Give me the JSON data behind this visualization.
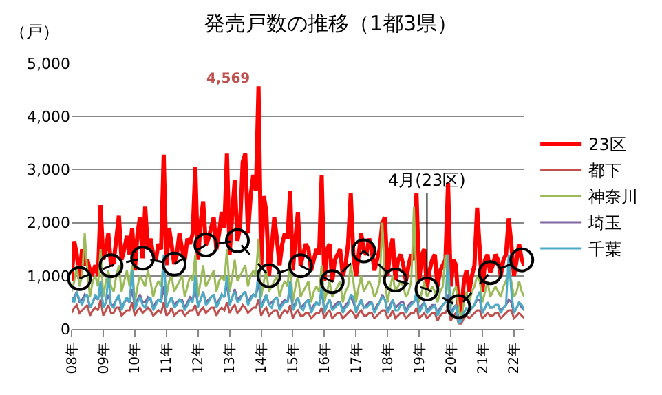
{
  "chart_data": {
    "type": "line",
    "title": "発売戸数の推移（1都3県）",
    "ylabel": "（戸）",
    "x": [
      "2008-01",
      "2008-02",
      "2008-03",
      "2008-04",
      "2008-05",
      "2008-06",
      "2008-07",
      "2008-08",
      "2008-09",
      "2008-10",
      "2008-11",
      "2008-12",
      "2009-01",
      "2009-02",
      "2009-03",
      "2009-04",
      "2009-05",
      "2009-06",
      "2009-07",
      "2009-08",
      "2009-09",
      "2009-10",
      "2009-11",
      "2009-12",
      "2010-01",
      "2010-02",
      "2010-03",
      "2010-04",
      "2010-05",
      "2010-06",
      "2010-07",
      "2010-08",
      "2010-09",
      "2010-10",
      "2010-11",
      "2010-12",
      "2011-01",
      "2011-02",
      "2011-03",
      "2011-04",
      "2011-05",
      "2011-06",
      "2011-07",
      "2011-08",
      "2011-09",
      "2011-10",
      "2011-11",
      "2011-12",
      "2012-01",
      "2012-02",
      "2012-03",
      "2012-04",
      "2012-05",
      "2012-06",
      "2012-07",
      "2012-08",
      "2012-09",
      "2012-10",
      "2012-11",
      "2012-12",
      "2013-01",
      "2013-02",
      "2013-03",
      "2013-04",
      "2013-05",
      "2013-06",
      "2013-07",
      "2013-08",
      "2013-09",
      "2013-10",
      "2013-11",
      "2013-12",
      "2014-01",
      "2014-02",
      "2014-03",
      "2014-04",
      "2014-05",
      "2014-06",
      "2014-07",
      "2014-08",
      "2014-09",
      "2014-10",
      "2014-11",
      "2014-12",
      "2015-01",
      "2015-02",
      "2015-03",
      "2015-04",
      "2015-05",
      "2015-06",
      "2015-07",
      "2015-08",
      "2015-09",
      "2015-10",
      "2015-11",
      "2015-12",
      "2016-01",
      "2016-02",
      "2016-03",
      "2016-04",
      "2016-05",
      "2016-06",
      "2016-07",
      "2016-08",
      "2016-09",
      "2016-10",
      "2016-11",
      "2016-12",
      "2017-01",
      "2017-02",
      "2017-03",
      "2017-04",
      "2017-05",
      "2017-06",
      "2017-07",
      "2017-08",
      "2017-09",
      "2017-10",
      "2017-11",
      "2017-12",
      "2018-01",
      "2018-02",
      "2018-03",
      "2018-04",
      "2018-05",
      "2018-06",
      "2018-07",
      "2018-08",
      "2018-09",
      "2018-10",
      "2018-11",
      "2018-12",
      "2019-01",
      "2019-02",
      "2019-03",
      "2019-04",
      "2019-05",
      "2019-06",
      "2019-07",
      "2019-08",
      "2019-09",
      "2019-10",
      "2019-11",
      "2019-12",
      "2020-01",
      "2020-02",
      "2020-03",
      "2020-04",
      "2020-05",
      "2020-06",
      "2020-07",
      "2020-08",
      "2020-09",
      "2020-10",
      "2020-11",
      "2020-12",
      "2021-01",
      "2021-02",
      "2021-03",
      "2021-04",
      "2021-05",
      "2021-06",
      "2021-07",
      "2021-08",
      "2021-09",
      "2021-10",
      "2021-11",
      "2021-12",
      "2022-01",
      "2022-02",
      "2022-03",
      "2022-04",
      "2022-05"
    ],
    "series": [
      {
        "name": "23区",
        "color": "#ff0000",
        "values": [
          900,
          1650,
          1400,
          950,
          1500,
          1200,
          1300,
          1100,
          1050,
          1200,
          1000,
          2330,
          1300,
          1500,
          1800,
          1190,
          1250,
          1700,
          2130,
          1300,
          1500,
          1750,
          1400,
          1900,
          1100,
          1800,
          2100,
          1330,
          2300,
          1500,
          1700,
          1400,
          1300,
          1600,
          1500,
          3280,
          1200,
          1900,
          1600,
          1220,
          1400,
          1800,
          1500,
          1300,
          1700,
          1600,
          1800,
          3050,
          1300,
          2000,
          2400,
          1580,
          1700,
          1900,
          2100,
          1500,
          1800,
          2200,
          1900,
          3300,
          1400,
          2200,
          2800,
          1660,
          1900,
          3140,
          3300,
          1800,
          2500,
          2900,
          2600,
          4569,
          1200,
          2500,
          2200,
          1000,
          1500,
          2100,
          1700,
          1200,
          1600,
          1800,
          1700,
          2600,
          1100,
          1700,
          2200,
          1190,
          1400,
          1600,
          1500,
          1100,
          1300,
          1500,
          1400,
          2890,
          900,
          1500,
          1600,
          890,
          1300,
          1400,
          1500,
          1000,
          1200,
          1600,
          2550,
          1400,
          1000,
          1400,
          1800,
          1470,
          1400,
          1700,
          1500,
          1100,
          1300,
          1500,
          2000,
          2100,
          1000,
          1500,
          1700,
          920,
          1300,
          1400,
          1200,
          900,
          1200,
          1400,
          1300,
          2550,
          900,
          1400,
          1500,
          750,
          1100,
          1300,
          1400,
          800,
          1100,
          1200,
          1300,
          2750,
          800,
          1300,
          1200,
          420,
          300,
          900,
          1100,
          700,
          1000,
          1200,
          2280,
          1500,
          700,
          1300,
          1400,
          1060,
          1200,
          1400,
          1300,
          1000,
          1300,
          1400,
          2080,
          1600,
          1000,
          1300,
          1600,
          1300,
          1200
        ],
        "value_labels": [
          null,
          null,
          null,
          null,
          null,
          null,
          null,
          null,
          null,
          null,
          null,
          null,
          null,
          null,
          null,
          null,
          null,
          null,
          null,
          null,
          null,
          null,
          null,
          null,
          null,
          null,
          null,
          null,
          null,
          null,
          null,
          null,
          null,
          null,
          null,
          null,
          null,
          null,
          null,
          null,
          null,
          null,
          null,
          null,
          null,
          null,
          null,
          null,
          null,
          null,
          null,
          null,
          null,
          null,
          null,
          null,
          null,
          null,
          null,
          null,
          null,
          null,
          null,
          null,
          null,
          null,
          null,
          null,
          null,
          null,
          null,
          "4,569",
          null,
          null,
          null,
          null,
          null,
          null,
          null,
          null,
          null,
          null,
          null,
          null,
          null,
          null,
          null,
          null,
          null,
          null,
          null,
          null,
          null,
          null,
          null,
          null,
          null,
          null,
          null,
          null,
          null,
          null,
          null,
          null,
          null,
          null,
          null,
          null,
          null,
          null,
          null,
          null,
          null,
          null,
          null,
          null,
          null,
          null,
          null,
          null,
          null,
          null,
          null,
          null,
          null,
          null,
          null,
          null,
          null,
          null,
          null,
          null,
          null,
          null,
          null,
          null,
          null,
          null,
          null,
          null,
          null,
          null,
          null,
          null,
          null,
          null,
          null,
          null,
          null,
          null,
          null,
          null,
          null,
          null,
          null,
          null,
          null,
          null,
          null,
          null,
          null,
          null,
          null,
          null,
          null,
          null,
          null,
          null,
          null,
          null,
          null,
          null,
          null
        ]
      },
      {
        "name": "都下",
        "color": "#c0504d",
        "values": [
          300,
          400,
          450,
          300,
          350,
          400,
          450,
          250,
          350,
          400,
          350,
          550,
          250,
          350,
          450,
          300,
          300,
          400,
          400,
          250,
          300,
          350,
          350,
          500,
          250,
          350,
          400,
          300,
          350,
          400,
          350,
          250,
          300,
          350,
          300,
          500,
          250,
          300,
          400,
          250,
          300,
          350,
          350,
          250,
          300,
          350,
          350,
          450,
          250,
          350,
          400,
          300,
          350,
          400,
          400,
          250,
          350,
          400,
          350,
          500,
          300,
          400,
          450,
          300,
          350,
          450,
          400,
          300,
          350,
          400,
          400,
          550,
          250,
          350,
          400,
          250,
          300,
          350,
          350,
          200,
          300,
          350,
          300,
          450,
          200,
          300,
          350,
          250,
          250,
          300,
          300,
          200,
          250,
          300,
          300,
          400,
          200,
          300,
          350,
          200,
          250,
          300,
          300,
          200,
          250,
          300,
          350,
          300,
          200,
          300,
          350,
          250,
          250,
          300,
          300,
          200,
          250,
          300,
          350,
          350,
          200,
          250,
          350,
          200,
          250,
          300,
          300,
          200,
          250,
          300,
          300,
          400,
          200,
          250,
          300,
          200,
          250,
          300,
          300,
          150,
          250,
          300,
          300,
          400,
          150,
          250,
          300,
          100,
          100,
          200,
          250,
          200,
          250,
          300,
          350,
          350,
          200,
          250,
          300,
          250,
          250,
          300,
          300,
          200,
          250,
          300,
          350,
          350,
          200,
          250,
          300,
          250,
          200
        ]
      },
      {
        "name": "神奈川",
        "color": "#9bbb59",
        "values": [
          700,
          900,
          1200,
          800,
          1000,
          1800,
          1100,
          600,
          900,
          1000,
          800,
          1500,
          600,
          900,
          1100,
          800,
          700,
          1000,
          1200,
          700,
          900,
          1100,
          800,
          1200,
          500,
          800,
          1000,
          900,
          800,
          1100,
          900,
          600,
          800,
          900,
          800,
          1300,
          600,
          900,
          1000,
          700,
          800,
          900,
          1000,
          600,
          800,
          1000,
          900,
          1400,
          600,
          900,
          1200,
          800,
          900,
          1000,
          1100,
          700,
          900,
          1000,
          900,
          1500,
          700,
          1000,
          1300,
          900,
          1000,
          1100,
          1200,
          800,
          1000,
          1100,
          1000,
          1700,
          600,
          900,
          1100,
          700,
          800,
          900,
          1000,
          600,
          800,
          900,
          800,
          1300,
          500,
          800,
          1000,
          600,
          700,
          800,
          900,
          500,
          700,
          800,
          700,
          1200,
          500,
          700,
          900,
          600,
          700,
          800,
          900,
          500,
          700,
          800,
          1200,
          900,
          500,
          800,
          1000,
          700,
          800,
          900,
          800,
          600,
          700,
          900,
          2000,
          900,
          500,
          800,
          1000,
          700,
          800,
          900,
          800,
          600,
          700,
          900,
          2300,
          800,
          500,
          700,
          900,
          600,
          700,
          800,
          700,
          500,
          700,
          800,
          1400,
          800,
          400,
          700,
          800,
          400,
          200,
          500,
          700,
          500,
          700,
          800,
          1000,
          900,
          500,
          700,
          900,
          600,
          700,
          800,
          700,
          600,
          800,
          900,
          1100,
          900,
          600,
          700,
          900,
          700,
          600
        ]
      },
      {
        "name": "埼玉",
        "color": "#8064a2",
        "values": [
          500,
          600,
          700,
          500,
          550,
          650,
          600,
          400,
          500,
          600,
          550,
          800,
          400,
          500,
          650,
          450,
          450,
          550,
          600,
          400,
          500,
          550,
          500,
          750,
          400,
          550,
          650,
          500,
          500,
          600,
          550,
          400,
          500,
          550,
          500,
          800,
          400,
          500,
          600,
          450,
          500,
          550,
          550,
          400,
          500,
          600,
          550,
          750,
          450,
          550,
          700,
          500,
          550,
          600,
          650,
          450,
          550,
          650,
          600,
          850,
          450,
          600,
          750,
          550,
          600,
          650,
          700,
          500,
          600,
          650,
          600,
          900,
          400,
          550,
          650,
          450,
          500,
          550,
          600,
          400,
          500,
          550,
          500,
          750,
          400,
          500,
          600,
          400,
          450,
          500,
          550,
          350,
          450,
          500,
          450,
          700,
          350,
          450,
          550,
          400,
          450,
          500,
          500,
          350,
          450,
          500,
          600,
          500,
          350,
          450,
          550,
          400,
          450,
          500,
          500,
          350,
          450,
          500,
          650,
          550,
          350,
          450,
          550,
          400,
          450,
          500,
          500,
          350,
          450,
          500,
          500,
          650,
          350,
          450,
          500,
          350,
          400,
          450,
          450,
          300,
          400,
          450,
          500,
          650,
          300,
          400,
          450,
          200,
          150,
          300,
          400,
          300,
          400,
          450,
          550,
          550,
          300,
          400,
          500,
          400,
          400,
          450,
          450,
          350,
          400,
          450,
          550,
          500,
          300,
          400,
          500,
          400,
          350
        ]
      },
      {
        "name": "千葉",
        "color": "#4bacc6",
        "values": [
          600,
          500,
          700,
          550,
          450,
          600,
          650,
          400,
          500,
          650,
          550,
          900,
          400,
          500,
          1000,
          450,
          400,
          550,
          650,
          350,
          500,
          600,
          500,
          1100,
          350,
          500,
          600,
          450,
          400,
          550,
          600,
          350,
          450,
          550,
          500,
          1400,
          400,
          500,
          600,
          400,
          450,
          550,
          500,
          350,
          450,
          550,
          500,
          1000,
          400,
          550,
          700,
          450,
          500,
          600,
          650,
          400,
          500,
          650,
          600,
          1000,
          450,
          600,
          700,
          500,
          550,
          650,
          700,
          450,
          550,
          650,
          600,
          1100,
          400,
          500,
          650,
          450,
          400,
          550,
          600,
          350,
          450,
          500,
          500,
          900,
          350,
          450,
          600,
          400,
          350,
          500,
          550,
          300,
          400,
          500,
          450,
          800,
          300,
          450,
          550,
          350,
          400,
          450,
          500,
          300,
          400,
          450,
          650,
          600,
          300,
          450,
          550,
          400,
          400,
          450,
          500,
          300,
          400,
          500,
          600,
          550,
          300,
          400,
          550,
          350,
          350,
          450,
          450,
          300,
          400,
          450,
          500,
          700,
          300,
          400,
          500,
          300,
          350,
          400,
          450,
          250,
          350,
          450,
          500,
          1400,
          250,
          350,
          450,
          100,
          150,
          300,
          400,
          300,
          400,
          450,
          600,
          700,
          300,
          400,
          500,
          400,
          400,
          450,
          450,
          300,
          400,
          450,
          1400,
          700,
          300,
          400,
          500,
          450,
          350
        ]
      },
      {
        "name": "4月(23区)",
        "color": "#000000",
        "type": "line",
        "marker": "circle",
        "line_style": "dashed",
        "x": [
          "2008-04",
          "2009-04",
          "2010-04",
          "2011-04",
          "2012-04",
          "2013-04",
          "2014-04",
          "2015-04",
          "2016-04",
          "2017-04",
          "2018-04",
          "2019-04",
          "2020-04",
          "2021-04",
          "2022-04"
        ],
        "values": [
          950,
          1190,
          1330,
          1220,
          1580,
          1660,
          1000,
          1190,
          890,
          1470,
          920,
          750,
          420,
          1060,
          1300
        ]
      }
    ],
    "xlim": [
      "2008-01",
      "2022-05"
    ],
    "xticks": [
      {
        "value": "2008-01",
        "label": "08年"
      },
      {
        "value": "2009-01",
        "label": "09年"
      },
      {
        "value": "2010-01",
        "label": "10年"
      },
      {
        "value": "2011-01",
        "label": "11年"
      },
      {
        "value": "2012-01",
        "label": "12年"
      },
      {
        "value": "2013-01",
        "label": "13年"
      },
      {
        "value": "2014-01",
        "label": "14年"
      },
      {
        "value": "2015-01",
        "label": "15年"
      },
      {
        "value": "2016-01",
        "label": "16年"
      },
      {
        "value": "2017-01",
        "label": "17年"
      },
      {
        "value": "2018-01",
        "label": "18年"
      },
      {
        "value": "2019-01",
        "label": "19年"
      },
      {
        "value": "2020-01",
        "label": "20年"
      },
      {
        "value": "2021-01",
        "label": "21年"
      },
      {
        "value": "2022-01",
        "label": "22年"
      }
    ],
    "ylim": [
      0,
      5000
    ],
    "yticks": [
      {
        "value": 0,
        "label": "0"
      },
      {
        "value": 1000,
        "label": "1,000"
      },
      {
        "value": 2000,
        "label": "2,000"
      },
      {
        "value": 3000,
        "label": "3,000"
      },
      {
        "value": 4000,
        "label": "4,000"
      },
      {
        "value": 5000,
        "label": "5,000"
      }
    ],
    "grid": "y",
    "legend": "right"
  }
}
